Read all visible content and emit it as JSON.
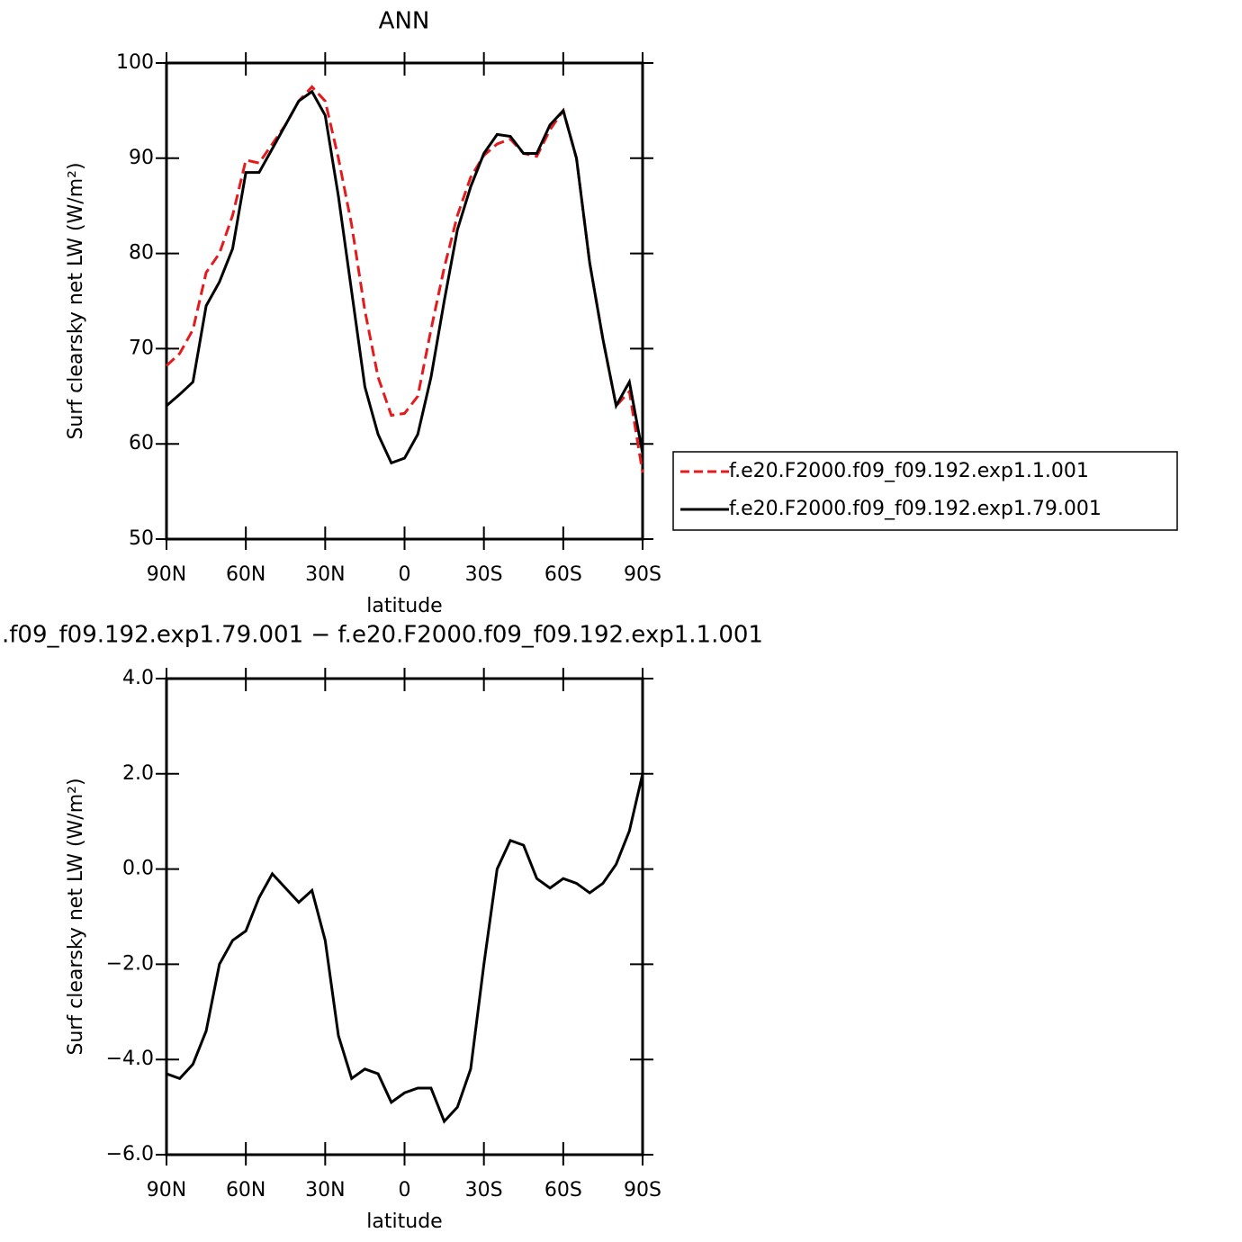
{
  "chart_data": [
    {
      "type": "line",
      "title": "ANN",
      "xlabel": "latitude",
      "ylabel": "Surf clearsky net LW (W/m²)",
      "x": [
        90,
        85,
        80,
        75,
        70,
        65,
        60,
        55,
        50,
        45,
        40,
        35,
        30,
        25,
        20,
        15,
        10,
        5,
        0,
        -5,
        -10,
        -15,
        -20,
        -25,
        -30,
        -35,
        -40,
        -45,
        -50,
        -55,
        -60,
        -65,
        -70,
        -75,
        -80,
        -85,
        -90
      ],
      "xlim": [
        90,
        -90
      ],
      "xticks": [
        {
          "value": 90,
          "label": "90N"
        },
        {
          "value": 60,
          "label": "60N"
        },
        {
          "value": 30,
          "label": "30N"
        },
        0,
        {
          "value": -30,
          "label": "30S"
        },
        {
          "value": -60,
          "label": "60S"
        },
        {
          "value": -90,
          "label": "90S"
        }
      ],
      "ylim": [
        50,
        100
      ],
      "yticks": [
        50,
        60,
        70,
        80,
        90,
        100
      ],
      "legend": "right",
      "series": [
        {
          "name": "f.e20.F2000.f09_f09.192.exp1.1.001",
          "color": "#e41a1c",
          "dash": true,
          "values": [
            68.2,
            69.5,
            72,
            78,
            80,
            84,
            89.8,
            89.5,
            91.5,
            93.5,
            96,
            97.5,
            96,
            90,
            83,
            74,
            67,
            63,
            63.2,
            65,
            72,
            78.5,
            84,
            88,
            90.3,
            91.5,
            92,
            90.5,
            90.2,
            93,
            95,
            90,
            79,
            71,
            64,
            65.5,
            57
          ]
        },
        {
          "name": "f.e20.F2000.f09_f09.192.exp1.79.001",
          "color": "#000000",
          "dash": false,
          "values": [
            64,
            65.2,
            66.5,
            74.5,
            77,
            80.5,
            88.5,
            88.5,
            91,
            93.5,
            96,
            97,
            94.5,
            86,
            76,
            66,
            61,
            58,
            58.5,
            61,
            67,
            75,
            82.5,
            87,
            90.5,
            92.5,
            92.3,
            90.5,
            90.5,
            93.5,
            95,
            90,
            79,
            71,
            64,
            66.5,
            59
          ]
        }
      ]
    },
    {
      "type": "line",
      "title": ".f09_f09.192.exp1.79.001 − f.e20.F2000.f09_f09.192.exp1.1.001",
      "xlabel": "latitude",
      "ylabel": "Surf clearsky net LW (W/m²)",
      "x": [
        90,
        85,
        80,
        75,
        70,
        65,
        60,
        55,
        50,
        45,
        40,
        35,
        30,
        25,
        20,
        15,
        10,
        5,
        0,
        -5,
        -10,
        -15,
        -20,
        -25,
        -30,
        -35,
        -40,
        -45,
        -50,
        -55,
        -60,
        -65,
        -70,
        -75,
        -80,
        -85,
        -90
      ],
      "xlim": [
        90,
        -90
      ],
      "xticks": [
        {
          "value": 90,
          "label": "90N"
        },
        {
          "value": 60,
          "label": "60N"
        },
        {
          "value": 30,
          "label": "30N"
        },
        0,
        {
          "value": -30,
          "label": "30S"
        },
        {
          "value": -60,
          "label": "60S"
        },
        {
          "value": -90,
          "label": "90S"
        }
      ],
      "ylim": [
        -6,
        4
      ],
      "yticks": [
        {
          "value": -6,
          "label": "−6.0"
        },
        {
          "value": -4,
          "label": "−4.0"
        },
        {
          "value": -2,
          "label": "−2.0"
        },
        {
          "value": 0,
          "label": "0.0"
        },
        {
          "value": 2,
          "label": "2.0"
        },
        {
          "value": 4,
          "label": "4.0"
        }
      ],
      "series": [
        {
          "color": "#000000",
          "dash": false,
          "values": [
            -4.3,
            -4.4,
            -4.1,
            -3.4,
            -2.0,
            -1.5,
            -1.3,
            -0.6,
            -0.1,
            -0.4,
            -0.7,
            -0.45,
            -1.5,
            -3.5,
            -4.4,
            -4.2,
            -4.3,
            -4.9,
            -4.7,
            -4.6,
            -4.6,
            -5.3,
            -5.0,
            -4.2,
            -2.0,
            0.0,
            0.6,
            0.5,
            -0.2,
            -0.4,
            -0.2,
            -0.3,
            -0.5,
            -0.3,
            0.1,
            0.8,
            2.0
          ]
        }
      ]
    }
  ]
}
